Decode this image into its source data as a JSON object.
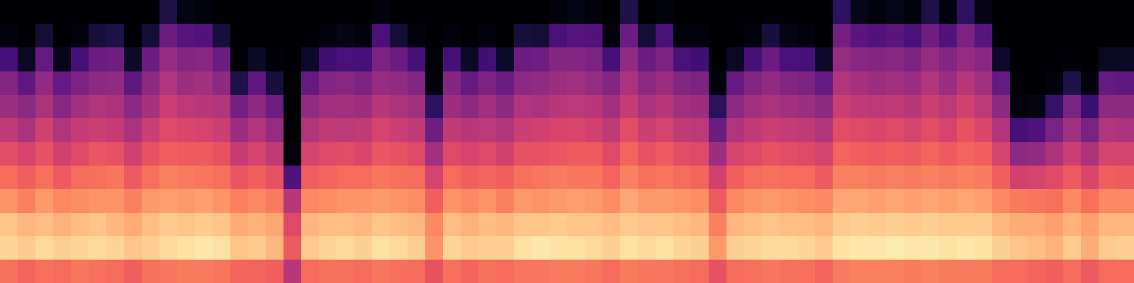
{
  "chart_data": {
    "type": "heatmap",
    "color": "magma",
    "tick_labels": false,
    "zlim": [
      -80,
      0
    ],
    "values": [
      [
        -24,
        -7,
        -10,
        -18,
        -25,
        -31,
        -38,
        -45,
        -50,
        -62,
        -78,
        -80
      ],
      [
        -26,
        -9,
        -12,
        -21,
        -27,
        -34,
        -42,
        -48,
        -57,
        -75,
        -80,
        -80
      ],
      [
        -24,
        -6,
        -11,
        -17,
        -24,
        -30,
        -35,
        -42,
        -47,
        -56,
        -72,
        -80
      ],
      [
        -25,
        -8,
        -13,
        -20,
        -28,
        -35,
        -41,
        -49,
        -56,
        -76,
        -80,
        -80
      ],
      [
        -23,
        -7,
        -11,
        -19,
        -25,
        -32,
        -37,
        -44,
        -51,
        -62,
        -78,
        -80
      ],
      [
        -24,
        -6,
        -10,
        -18,
        -24,
        -29,
        -36,
        -41,
        -48,
        -55,
        -71,
        -80
      ],
      [
        -25,
        -7,
        -12,
        -18,
        -23,
        -30,
        -37,
        -42,
        -47,
        -54,
        -70,
        -80
      ],
      [
        -27,
        -10,
        -14,
        -21,
        -28,
        -35,
        -42,
        -48,
        -57,
        -74,
        -80,
        -80
      ],
      [
        -24,
        -8,
        -11,
        -17,
        -24,
        -30,
        -36,
        -43,
        -48,
        -55,
        -72,
        -80
      ],
      [
        -23,
        -6,
        -9,
        -16,
        -21,
        -27,
        -32,
        -36,
        -41,
        -46,
        -55,
        -70
      ],
      [
        -22,
        -5,
        -10,
        -17,
        -22,
        -28,
        -33,
        -39,
        -45,
        -50,
        -59,
        -77
      ],
      [
        -22,
        -4,
        -9,
        -16,
        -23,
        -28,
        -34,
        -40,
        -44,
        -49,
        -60,
        -78
      ],
      [
        -23,
        -5,
        -10,
        -18,
        -24,
        -30,
        -36,
        -41,
        -48,
        -55,
        -71,
        -80
      ],
      [
        -26,
        -10,
        -14,
        -21,
        -29,
        -37,
        -45,
        -53,
        -70,
        -79,
        -80,
        -80
      ],
      [
        -26,
        -9,
        -13,
        -20,
        -27,
        -34,
        -41,
        -48,
        -57,
        -75,
        -80,
        -80
      ],
      [
        -27,
        -12,
        -15,
        -22,
        -30,
        -38,
        -46,
        -54,
        -71,
        -79,
        -80,
        -80
      ],
      [
        -40,
        -28,
        -32,
        -40,
        -60,
        -78,
        -80,
        -80,
        -80,
        -80,
        -80,
        -80
      ],
      [
        -25,
        -9,
        -12,
        -20,
        -27,
        -34,
        -41,
        -47,
        -56,
        -74,
        -80,
        -80
      ],
      [
        -24,
        -7,
        -11,
        -19,
        -26,
        -32,
        -38,
        -44,
        -50,
        -63,
        -78,
        -80
      ],
      [
        -24,
        -6,
        -11,
        -18,
        -25,
        -31,
        -39,
        -44,
        -49,
        -61,
        -77,
        -80
      ],
      [
        -25,
        -8,
        -12,
        -18,
        -25,
        -33,
        -38,
        -45,
        -51,
        -62,
        -78,
        -80
      ],
      [
        -23,
        -5,
        -10,
        -17,
        -23,
        -29,
        -34,
        -40,
        -46,
        -51,
        -61,
        -78
      ],
      [
        -24,
        -6,
        -11,
        -18,
        -24,
        -30,
        -36,
        -42,
        -47,
        -55,
        -72,
        -80
      ],
      [
        -25,
        -8,
        -12,
        -19,
        -25,
        -32,
        -38,
        -44,
        -50,
        -62,
        -78,
        -80
      ],
      [
        -30,
        -18,
        -20,
        -27,
        -34,
        -44,
        -54,
        -66,
        -78,
        -80,
        -80,
        -80
      ],
      [
        -24,
        -7,
        -11,
        -18,
        -25,
        -32,
        -38,
        -45,
        -50,
        -62,
        -78,
        -80
      ],
      [
        -26,
        -9,
        -13,
        -20,
        -27,
        -34,
        -40,
        -48,
        -56,
        -75,
        -80,
        -80
      ],
      [
        -24,
        -8,
        -11,
        -18,
        -26,
        -32,
        -39,
        -44,
        -51,
        -63,
        -78,
        -80
      ],
      [
        -25,
        -8,
        -12,
        -21,
        -27,
        -35,
        -41,
        -48,
        -55,
        -74,
        -80,
        -80
      ],
      [
        -23,
        -5,
        -10,
        -17,
        -24,
        -30,
        -36,
        -41,
        -48,
        -55,
        -71,
        -80
      ],
      [
        -23,
        -4,
        -10,
        -18,
        -23,
        -30,
        -35,
        -42,
        -47,
        -54,
        -72,
        -80
      ],
      [
        -22,
        -5,
        -9,
        -17,
        -22,
        -29,
        -34,
        -40,
        -45,
        -50,
        -61,
        -78
      ],
      [
        -22,
        -5,
        -10,
        -16,
        -23,
        -28,
        -33,
        -39,
        -44,
        -50,
        -59,
        -77
      ],
      [
        -23,
        -6,
        -10,
        -17,
        -23,
        -28,
        -35,
        -40,
        -46,
        -51,
        -60,
        -78
      ],
      [
        -25,
        -8,
        -11,
        -19,
        -26,
        -32,
        -38,
        -44,
        -50,
        -62,
        -78,
        -80
      ],
      [
        -22,
        -5,
        -9,
        -15,
        -21,
        -26,
        -31,
        -37,
        -42,
        -47,
        -55,
        -70
      ],
      [
        -23,
        -6,
        -10,
        -17,
        -24,
        -30,
        -36,
        -42,
        -48,
        -55,
        -72,
        -80
      ],
      [
        -23,
        -5,
        -10,
        -17,
        -23,
        -28,
        -34,
        -40,
        -45,
        -51,
        -61,
        -78
      ],
      [
        -24,
        -7,
        -11,
        -18,
        -25,
        -31,
        -38,
        -44,
        -50,
        -61,
        -78,
        -80
      ],
      [
        -25,
        -8,
        -12,
        -19,
        -26,
        -32,
        -39,
        -45,
        -51,
        -63,
        -78,
        -80
      ],
      [
        -30,
        -17,
        -21,
        -28,
        -35,
        -45,
        -55,
        -67,
        -78,
        -80,
        -80,
        -80
      ],
      [
        -25,
        -8,
        -12,
        -20,
        -27,
        -34,
        -41,
        -48,
        -56,
        -75,
        -80,
        -80
      ],
      [
        -24,
        -7,
        -11,
        -18,
        -25,
        -32,
        -38,
        -44,
        -50,
        -62,
        -78,
        -80
      ],
      [
        -23,
        -6,
        -10,
        -17,
        -24,
        -30,
        -36,
        -42,
        -47,
        -55,
        -71,
        -80
      ],
      [
        -24,
        -6,
        -11,
        -18,
        -25,
        -31,
        -37,
        -44,
        -50,
        -61,
        -77,
        -80
      ],
      [
        -24,
        -7,
        -11,
        -19,
        -25,
        -32,
        -38,
        -45,
        -51,
        -62,
        -78,
        -80
      ],
      [
        -26,
        -9,
        -12,
        -20,
        -28,
        -34,
        -41,
        -48,
        -56,
        -74,
        -80,
        -80
      ],
      [
        -22,
        -5,
        -9,
        -15,
        -21,
        -26,
        -31,
        -36,
        -41,
        -46,
        -53,
        -66
      ],
      [
        -21,
        -4,
        -8,
        -15,
        -21,
        -27,
        -32,
        -38,
        -43,
        -49,
        -58,
        -76
      ],
      [
        -21,
        -4,
        -9,
        -16,
        -22,
        -28,
        -33,
        -39,
        -45,
        -50,
        -60,
        -78
      ],
      [
        -21,
        -3,
        -8,
        -15,
        -21,
        -27,
        -32,
        -38,
        -44,
        -49,
        -58,
        -76
      ],
      [
        -22,
        -4,
        -9,
        -16,
        -22,
        -28,
        -34,
        -40,
        -45,
        -51,
        -61,
        -78
      ],
      [
        -21,
        -4,
        -8,
        -15,
        -21,
        -26,
        -31,
        -36,
        -41,
        -46,
        -54,
        -70
      ],
      [
        -22,
        -5,
        -9,
        -16,
        -22,
        -28,
        -34,
        -39,
        -45,
        -50,
        -60,
        -78
      ],
      [
        -22,
        -4,
        -9,
        -15,
        -21,
        -26,
        -30,
        -35,
        -40,
        -46,
        -52,
        -66
      ],
      [
        -22,
        -5,
        -9,
        -16,
        -22,
        -27,
        -33,
        -39,
        -44,
        -49,
        -59,
        -77
      ],
      [
        -25,
        -8,
        -12,
        -20,
        -27,
        -34,
        -41,
        -48,
        -56,
        -74,
        -80,
        -80
      ],
      [
        -25,
        -10,
        -14,
        -22,
        -35,
        -48,
        -62,
        -78,
        -80,
        -80,
        -80,
        -80
      ],
      [
        -26,
        -11,
        -14,
        -23,
        -34,
        -47,
        -60,
        -77,
        -80,
        -80,
        -80,
        -80
      ],
      [
        -27,
        -13,
        -16,
        -24,
        -32,
        -42,
        -52,
        -65,
        -78,
        -80,
        -80,
        -80
      ],
      [
        -25,
        -9,
        -13,
        -20,
        -28,
        -36,
        -44,
        -52,
        -70,
        -79,
        -80,
        -80
      ],
      [
        -28,
        -14,
        -16,
        -24,
        -33,
        -42,
        -52,
        -64,
        -78,
        -80,
        -80,
        -80
      ],
      [
        -25,
        -9,
        -12,
        -20,
        -27,
        -34,
        -41,
        -48,
        -56,
        -75,
        -80,
        -80
      ],
      [
        -25,
        -8,
        -12,
        -20,
        -28,
        -34,
        -42,
        -48,
        -57,
        -75,
        -80,
        -80
      ]
    ]
  }
}
